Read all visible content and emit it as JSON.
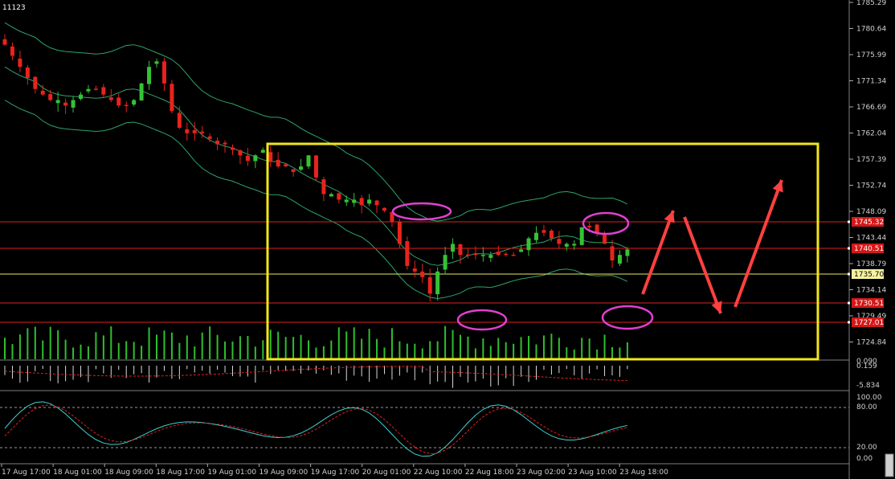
{
  "symbol": "11123",
  "colors": {
    "background": "#000000",
    "bull": "#35c235",
    "bear": "#e8231c",
    "band": "#2ea36a",
    "hline": "#e02020",
    "current": "#e8e86a",
    "box": "#f2e61a",
    "ellipse": "#e040d0",
    "arrow": "#ff4040",
    "volume": "#2fbf2f",
    "osc": "#40d0d0",
    "signal": "#e02020"
  },
  "price_axis": {
    "ticks": [
      "1785.29",
      "1780.64",
      "1775.99",
      "1771.34",
      "1766.69",
      "1762.04",
      "1757.39",
      "1752.74",
      "1748.09",
      "1743.44",
      "1738.79",
      "1734.14",
      "1729.49",
      "1724.84"
    ],
    "range": [
      1720.19,
      1785.29
    ]
  },
  "levels": [
    {
      "label": "1745.32",
      "value": 1745.32,
      "color": "#e02020"
    },
    {
      "label": "1740.51",
      "value": 1740.51,
      "color": "#e02020"
    },
    {
      "label": "1735.70",
      "value": 1735.7,
      "color": "#e8e86a"
    },
    {
      "label": "1730.51",
      "value": 1730.51,
      "color": "#e02020"
    },
    {
      "label": "1727.01",
      "value": 1727.01,
      "color": "#e02020"
    }
  ],
  "time_axis": [
    "17 Aug 17:00",
    "18 Aug 01:00",
    "18 Aug 09:00",
    "18 Aug 17:00",
    "19 Aug 01:00",
    "19 Aug 09:00",
    "19 Aug 17:00",
    "20 Aug 01:00",
    "22 Aug 10:00",
    "22 Aug 18:00",
    "23 Aug 02:00",
    "23 Aug 10:00",
    "23 Aug 18:00"
  ],
  "macd_panel": {
    "labels": [
      "0.090",
      "0.159",
      "-5.834"
    ]
  },
  "stoch_panel": {
    "labels": [
      "100.00",
      "80.00",
      "20.00",
      "0.00"
    ],
    "levels": [
      80,
      20
    ]
  },
  "chart_data": {
    "type": "line",
    "title": "",
    "series": [
      {
        "name": "",
        "values": [
          1774,
          1772,
          1770,
          1768,
          1766,
          1765,
          1764,
          1764,
          1763,
          1764,
          1765,
          1766,
          1766,
          1765,
          1764,
          1763,
          1763,
          1764,
          1767,
          1770,
          1771,
          1767,
          1762,
          1759,
          1758,
          1758,
          1758,
          1757,
          1756,
          1756,
          1755,
          1754,
          1753,
          1754,
          1755,
          1753,
          1752,
          1752,
          1751,
          1752,
          1754,
          1750,
          1747,
          1747,
          1746,
          1746,
          1746,
          1745,
          1746,
          1745,
          1744,
          1742,
          1738,
          1734,
          1733,
          1732,
          1729,
          1733,
          1736,
          1738,
          1736,
          1736,
          1736,
          1736,
          1736,
          1736,
          1736,
          1736,
          1737,
          1739,
          1740,
          1740,
          1739,
          1738,
          1738,
          1738,
          1741,
          1741,
          1740,
          1738,
          1735,
          1736,
          1737
        ]
      }
    ],
    "ylim": [
      1720.19,
      1785.29
    ]
  }
}
